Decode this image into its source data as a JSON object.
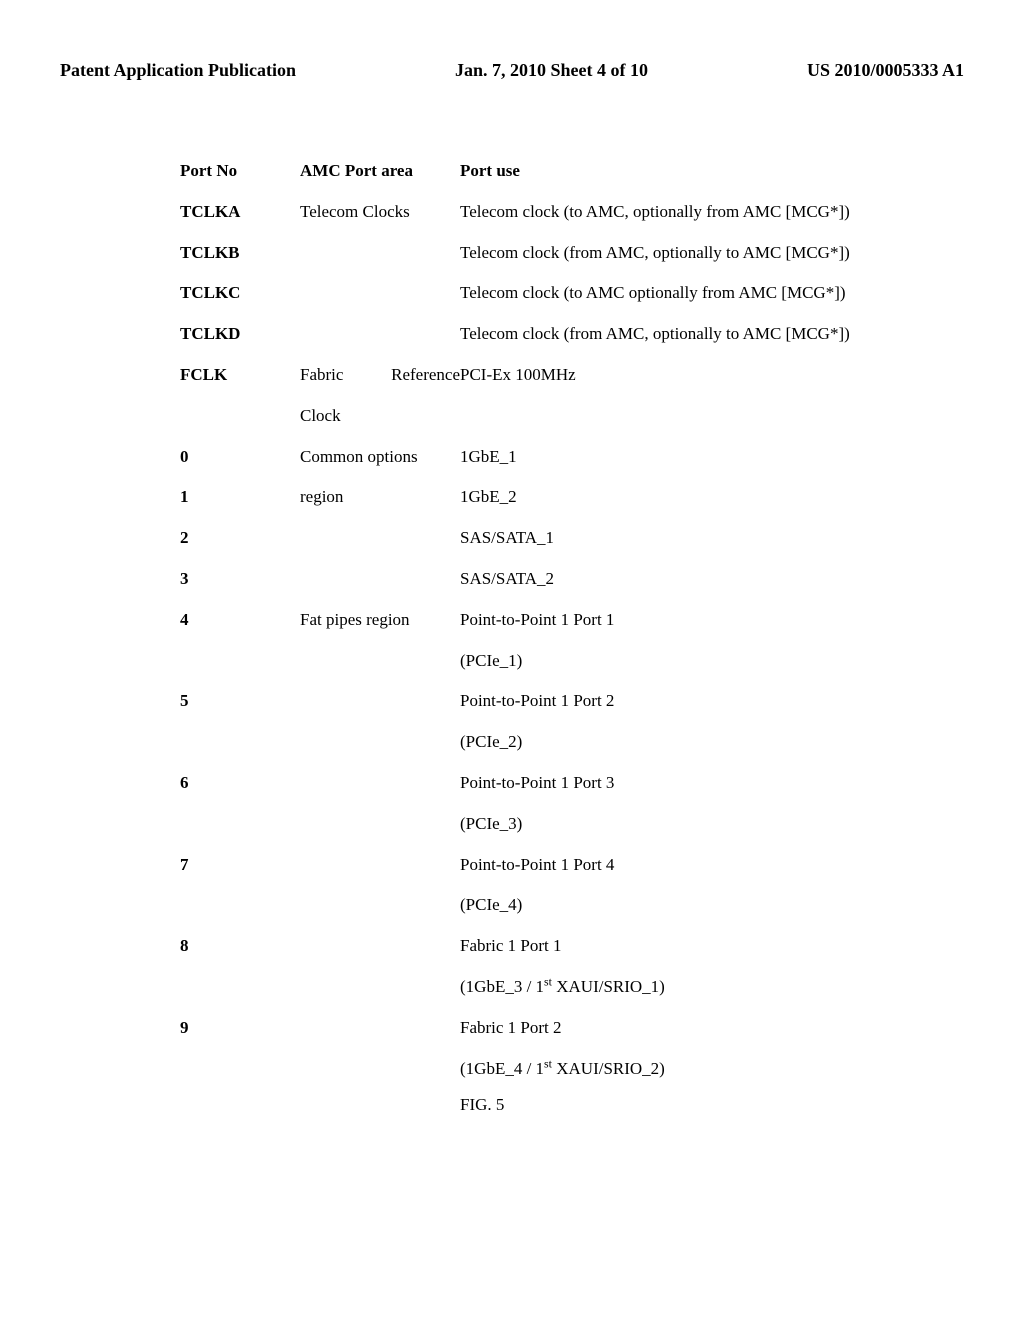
{
  "header": {
    "left": "Patent Application Publication",
    "center": "Jan. 7, 2010   Sheet 4 of 10",
    "right": "US 2010/0005333 A1"
  },
  "table": {
    "headers": {
      "port": "Port No",
      "area": "AMC Port area",
      "use": "Port use"
    },
    "rows": [
      {
        "port": "TCLKA",
        "area": "Telecom Clocks",
        "use": "Telecom clock (to AMC, optionally from AMC [MCG*])",
        "justify": true
      },
      {
        "port": "TCLKB",
        "area": "",
        "use": "Telecom clock (from AMC, optionally to AMC [MCG*])",
        "justify": true
      },
      {
        "port": "TCLKC",
        "area": "",
        "use": "Telecom clock (to AMC optionally from AMC [MCG*])"
      },
      {
        "port": "TCLKD",
        "area": "",
        "use": "Telecom clock (from AMC, optionally to AMC [MCG*])",
        "justify": true
      },
      {
        "port": "FCLK",
        "area": "Fabric Reference Clock",
        "use": "PCI-Ex 100MHz",
        "areaJustify": true
      },
      {
        "port": "0",
        "area": "Common options",
        "use": "1GbE_1"
      },
      {
        "port": "1",
        "area": "region",
        "use": "1GbE_2"
      },
      {
        "port": "2",
        "area": "",
        "use": "SAS/SATA_1"
      },
      {
        "port": "3",
        "area": "",
        "use": "SAS/SATA_2"
      },
      {
        "port": "4",
        "area": "Fat pipes region",
        "use": "Point-to-Point 1 Port 1"
      },
      {
        "port": "",
        "area": "",
        "use": "(PCIe_1)"
      },
      {
        "port": "5",
        "area": "",
        "use": "Point-to-Point 1 Port 2"
      },
      {
        "port": "",
        "area": "",
        "use": "(PCIe_2)"
      },
      {
        "port": "6",
        "area": "",
        "use": "Point-to-Point 1 Port 3"
      },
      {
        "port": "",
        "area": "",
        "use": "(PCIe_3)"
      },
      {
        "port": "7",
        "area": "",
        "use": "Point-to-Point 1 Port 4"
      },
      {
        "port": "",
        "area": "",
        "use": "(PCIe_4)"
      },
      {
        "port": "8",
        "area": "",
        "use": "Fabric 1 Port 1"
      },
      {
        "port": "",
        "area": "",
        "use": "(1GbE_3 / 1<sup>st</sup> XAUI/SRIO_1)",
        "html": true
      },
      {
        "port": "9",
        "area": "",
        "use": "Fabric 1 Port 2"
      },
      {
        "port": "",
        "area": "",
        "use": "(1GbE_4 / 1<sup>st</sup> XAUI/SRIO_2)",
        "html": true
      }
    ]
  },
  "figLabel": "FIG. 5"
}
